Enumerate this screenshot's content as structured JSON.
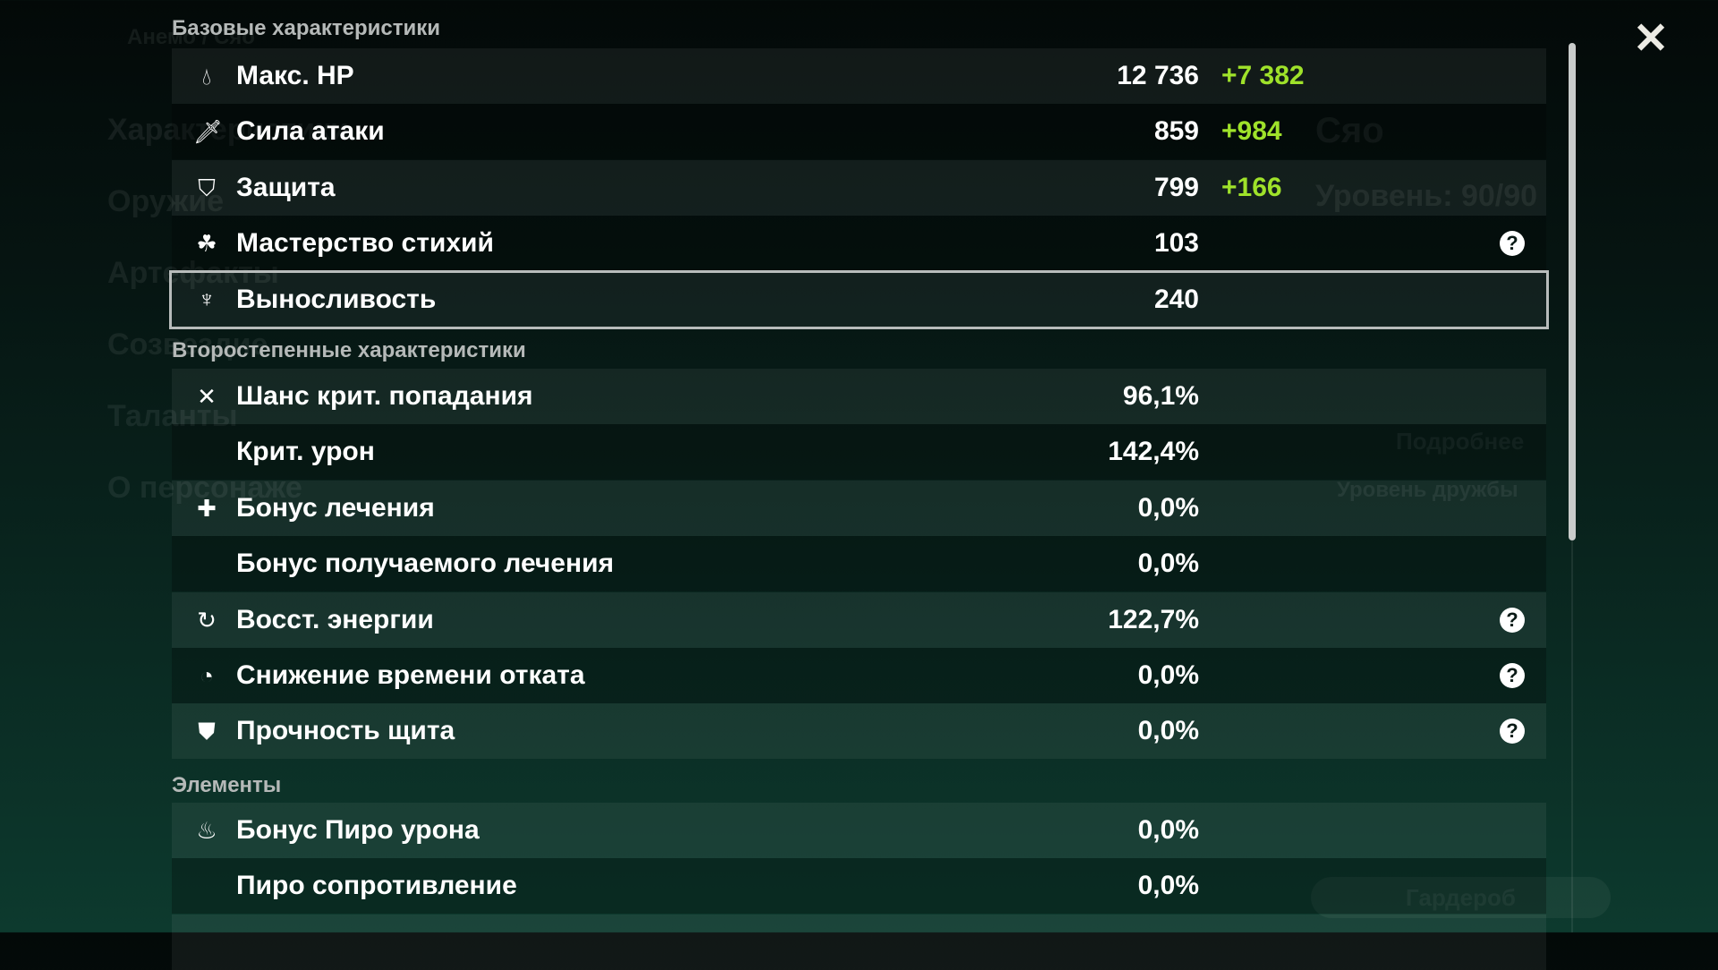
{
  "background": {
    "element_path": "Анемо / Сяо",
    "menu": [
      "Характеристики",
      "Оружие",
      "Артефакты",
      "Созвездие",
      "Таланты",
      "О персонаже"
    ],
    "char_name": "Сяо",
    "level": "Уровень: 90/90",
    "details_button": "Подробнее",
    "friendship": "Уровень дружбы",
    "wardrobe": "Гардероб"
  },
  "sections": {
    "base": "Базовые характеристики",
    "secondary": "Второстепенные характеристики",
    "elements": "Элементы"
  },
  "base_stats": [
    {
      "icon": "hp-drop-icon",
      "label": "Макс. HP",
      "value": "12 736",
      "bonus": "+7 382"
    },
    {
      "icon": "sword-icon",
      "label": "Сила атаки",
      "value": "859",
      "bonus": "+984"
    },
    {
      "icon": "shield-icon",
      "label": "Защита",
      "value": "799",
      "bonus": "+166"
    },
    {
      "icon": "elemental-mastery-icon",
      "label": "Мастерство стихий",
      "value": "103",
      "help": true
    },
    {
      "icon": "stamina-icon",
      "label": "Выносливость",
      "value": "240",
      "selected": true
    }
  ],
  "secondary_stats": [
    {
      "icon": "crit-icon",
      "label": "Шанс крит. попадания",
      "value": "96,1%"
    },
    {
      "label": "Крит. урон",
      "value": "142,4%"
    },
    {
      "icon": "healing-cross-icon",
      "label": "Бонус лечения",
      "value": "0,0%"
    },
    {
      "label": "Бонус получаемого лечения",
      "value": "0,0%"
    },
    {
      "icon": "energy-recharge-icon",
      "label": "Восст. энергии",
      "value": "122,7%",
      "help": true
    },
    {
      "icon": "cooldown-icon",
      "label": "Снижение времени отката",
      "value": "0,0%",
      "help": true
    },
    {
      "icon": "shield-strength-icon",
      "label": "Прочность щита",
      "value": "0,0%",
      "help": true
    }
  ],
  "element_stats": [
    {
      "icon": "pyro-icon",
      "label": "Бонус Пиро урона",
      "value": "0,0%"
    },
    {
      "label": "Пиро сопротивление",
      "value": "0,0%"
    }
  ],
  "help_glyph": "?",
  "close_glyph": "✕",
  "colors": {
    "bonus": "#9fe22a",
    "selected_border": "#b8bcbb"
  }
}
